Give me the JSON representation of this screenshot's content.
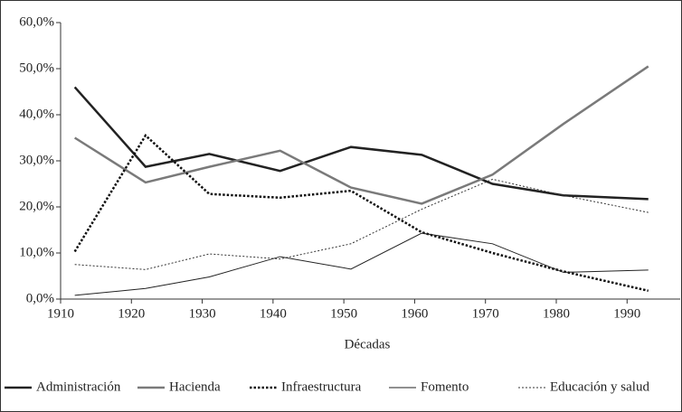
{
  "chart_data": {
    "type": "line",
    "x_label": "Décadas",
    "x": [
      1912,
      1922,
      1931,
      1941,
      1951,
      1961,
      1971,
      1981,
      1993
    ],
    "series": [
      {
        "name": "Administración",
        "color": "#222222",
        "style": "solid",
        "width": 2.5,
        "values": [
          46,
          28.7,
          31.5,
          27.8,
          33,
          31.3,
          25,
          22.5,
          21.7
        ]
      },
      {
        "name": "Hacienda",
        "color": "#7a7a7a",
        "style": "solid",
        "width": 2.5,
        "values": [
          35,
          25.3,
          28.7,
          32.2,
          24.2,
          20.7,
          27,
          38,
          50.5
        ]
      },
      {
        "name": "Infraestructura",
        "color": "#111111",
        "style": "dotted",
        "width": 2.5,
        "values": [
          10.3,
          35.5,
          22.8,
          22,
          23.5,
          14.5,
          10,
          6,
          1.8
        ]
      },
      {
        "name": "Fomento",
        "color": "#222222",
        "style": "solid",
        "width": 1,
        "values": [
          0.8,
          2.3,
          4.8,
          9.2,
          6.5,
          14.3,
          12,
          5.8,
          6.3
        ]
      },
      {
        "name": "Educación y salud",
        "color": "#333333",
        "style": "dotted",
        "width": 1,
        "values": [
          7.5,
          6.4,
          9.8,
          8.7,
          12,
          19.5,
          26,
          22.5,
          18.8
        ]
      }
    ],
    "xlim": [
      1910,
      1997.5
    ],
    "xticks": [
      1910,
      1920,
      1930,
      1940,
      1950,
      1960,
      1970,
      1980,
      1990
    ],
    "ylim": [
      0,
      60
    ],
    "yticks": [
      {
        "value": 0,
        "label": "0,0%"
      },
      {
        "value": 10,
        "label": "10,0%"
      },
      {
        "value": 20,
        "label": "20,0%"
      },
      {
        "value": 30,
        "label": "30,0%"
      },
      {
        "value": 40,
        "label": "40,0%"
      },
      {
        "value": 50,
        "label": "50,0%"
      },
      {
        "value": 60,
        "label": "60,0%"
      }
    ],
    "legend": "bottom"
  }
}
